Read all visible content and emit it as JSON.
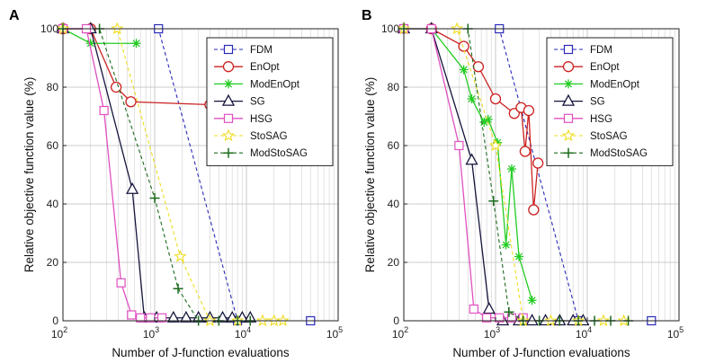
{
  "chart_data": [
    {
      "type": "line",
      "panel": "A",
      "xscale": "log",
      "xlim": [
        100,
        100000
      ],
      "ylim": [
        0,
        100
      ],
      "xticks": [
        "10^2",
        "10^3",
        "10^4",
        "10^5"
      ],
      "yticks": [
        "0",
        "20",
        "40",
        "60",
        "80",
        "100"
      ],
      "xlabel": "Number of J-function evaluations",
      "ylabel": "Relative objective function value (%)",
      "grid": true,
      "legend_position": "top-right",
      "series": [
        {
          "name": "FDM",
          "color": "#2a2ab8",
          "linestyle": "dashed",
          "marker": "square",
          "x": [
            100,
            1100,
            8000,
            50000
          ],
          "y": [
            100,
            100,
            0,
            0
          ]
        },
        {
          "name": "EnOpt",
          "color": "#cc2222",
          "linestyle": "solid",
          "marker": "circle",
          "x": [
            100,
            200,
            380,
            550,
            4000
          ],
          "y": [
            100,
            100,
            80,
            75,
            74
          ]
        },
        {
          "name": "ModEnOpt",
          "color": "#22cc22",
          "linestyle": "solid",
          "marker": "asterisk",
          "x": [
            100,
            200,
            630
          ],
          "y": [
            100,
            95,
            95
          ]
        },
        {
          "name": "SG",
          "color": "#14143c",
          "linestyle": "solid",
          "marker": "triangle",
          "x": [
            100,
            200,
            570,
            770,
            1050,
            1600,
            2200,
            3000,
            4000,
            5500,
            7000,
            9000,
            11000
          ],
          "y": [
            100,
            100,
            45,
            1,
            1,
            1,
            1,
            1,
            1,
            1,
            1,
            1,
            1
          ]
        },
        {
          "name": "HSG",
          "color": "#e050c0",
          "linestyle": "solid",
          "marker": "square",
          "x": [
            100,
            180,
            280,
            430,
            560,
            700,
            900,
            1200
          ],
          "y": [
            100,
            100,
            72,
            13,
            2,
            1,
            1,
            1
          ]
        },
        {
          "name": "StoSAG",
          "color": "#eedd22",
          "linestyle": "dashed",
          "marker": "star",
          "x": [
            100,
            390,
            1900,
            4000,
            8000,
            15000,
            20000,
            25000
          ],
          "y": [
            100,
            100,
            22,
            0,
            0,
            0,
            0,
            0
          ]
        },
        {
          "name": "ModStoSAG",
          "color": "#1c6b1c",
          "linestyle": "dashed",
          "marker": "plus",
          "x": [
            100,
            250,
            1000,
            1800,
            3000,
            5000,
            8000,
            11000
          ],
          "y": [
            100,
            100,
            42,
            11,
            0,
            0,
            0,
            0
          ]
        }
      ]
    },
    {
      "type": "line",
      "panel": "B",
      "xscale": "log",
      "xlim": [
        100,
        100000
      ],
      "ylim": [
        0,
        100
      ],
      "xticks": [
        "10^2",
        "10^3",
        "10^4",
        "10^5"
      ],
      "yticks": [
        "0",
        "20",
        "40",
        "60",
        "80",
        "100"
      ],
      "xlabel": "Number of J-function evaluations",
      "ylabel": "Relative objective function value (%)",
      "grid": true,
      "legend_position": "top-right",
      "series": [
        {
          "name": "FDM",
          "color": "#2a2ab8",
          "linestyle": "dashed",
          "marker": "square",
          "x": [
            100,
            1100,
            8000,
            50000
          ],
          "y": [
            100,
            100,
            0,
            0
          ]
        },
        {
          "name": "EnOpt",
          "color": "#cc2222",
          "linestyle": "solid",
          "marker": "circle",
          "x": [
            200,
            450,
            650,
            1000,
            1600,
            1900,
            2100,
            2300,
            2600,
            2900
          ],
          "y": [
            100,
            94,
            87,
            76,
            71,
            73,
            58,
            72,
            38,
            54
          ]
        },
        {
          "name": "ModEnOpt",
          "color": "#22cc22",
          "linestyle": "solid",
          "marker": "asterisk",
          "x": [
            100,
            200,
            450,
            550,
            750,
            830,
            1050,
            1300,
            1500,
            1800,
            2500
          ],
          "y": [
            100,
            100,
            86,
            76,
            68,
            69,
            61,
            26,
            52,
            22,
            7
          ]
        },
        {
          "name": "SG",
          "color": "#14143c",
          "linestyle": "solid",
          "marker": "triangle",
          "x": [
            100,
            200,
            550,
            850,
            1200,
            1800,
            2500,
            3500,
            5000,
            7000,
            9000
          ],
          "y": [
            100,
            100,
            55,
            4,
            0,
            0,
            0,
            0,
            0,
            0,
            0
          ]
        },
        {
          "name": "HSG",
          "color": "#e050c0",
          "linestyle": "solid",
          "marker": "square",
          "x": [
            100,
            200,
            400,
            580,
            800,
            1100,
            1500,
            2000
          ],
          "y": [
            100,
            100,
            60,
            4,
            1,
            1,
            1,
            1
          ]
        },
        {
          "name": "StoSAG",
          "color": "#eedd22",
          "linestyle": "dashed",
          "marker": "star",
          "x": [
            100,
            380,
            1000,
            2000,
            4000,
            8000,
            15000,
            25000
          ],
          "y": [
            100,
            100,
            60,
            0,
            0,
            0,
            0,
            0
          ]
        },
        {
          "name": "ModStoSAG",
          "color": "#1c6b1c",
          "linestyle": "dashed",
          "marker": "plus",
          "x": [
            100,
            500,
            950,
            1400,
            2000,
            3000,
            5000,
            8000,
            12000,
            18000,
            28000
          ],
          "y": [
            100,
            100,
            41,
            3,
            0,
            0,
            0,
            0,
            0,
            0,
            0
          ]
        }
      ]
    }
  ]
}
